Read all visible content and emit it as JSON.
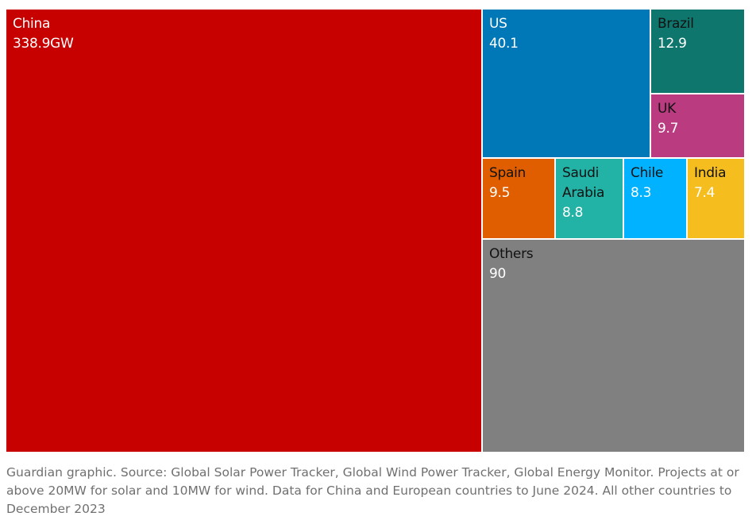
{
  "chart_data": {
    "type": "treemap",
    "unit": "GW",
    "items": [
      {
        "name": "China",
        "value": 338.9,
        "value_label": "338.9GW",
        "color": "#c70000"
      },
      {
        "name": "US",
        "value": 40.1,
        "value_label": "40.1",
        "color": "#0077b6"
      },
      {
        "name": "Brazil",
        "value": 12.9,
        "value_label": "12.9",
        "color": "#0f766e"
      },
      {
        "name": "UK",
        "value": 9.7,
        "value_label": "9.7",
        "color": "#bb3b80"
      },
      {
        "name": "Spain",
        "value": 9.5,
        "value_label": "9.5",
        "color": "#e05e00"
      },
      {
        "name": "Saudi Arabia",
        "value": 8.8,
        "value_label": "8.8",
        "color": "#22b3a6"
      },
      {
        "name": "Chile",
        "value": 8.3,
        "value_label": "8.3",
        "color": "#00b2ff"
      },
      {
        "name": "India",
        "value": 7.4,
        "value_label": "7.4",
        "color": "#f5be1e"
      },
      {
        "name": "Others",
        "value": 90,
        "value_label": "90",
        "color": "#808080"
      }
    ]
  },
  "source_note": "Guardian graphic. Source: Global Solar Power Tracker, Global Wind Power Tracker, Global Energy Monitor. Projects at or above 20MW for solar and 10MW for wind. Data for China and European countries to June 2024. All other countries to December 2023"
}
